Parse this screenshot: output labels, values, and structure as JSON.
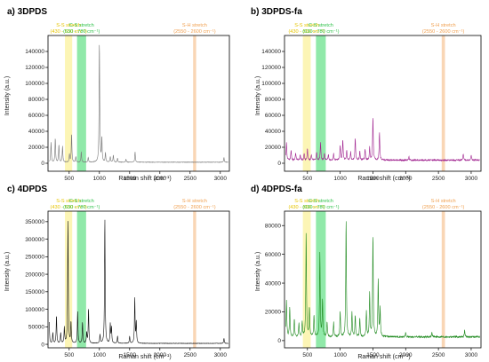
{
  "colors": {
    "ss_band": "#fbf3a8",
    "cs_band": "#7de59a",
    "sh_band": "#f8cfa8",
    "ss_text": "#e6c400",
    "cs_text": "#2ec24a",
    "sh_text": "#f0a050"
  },
  "chart_data": [
    {
      "type": "line",
      "title": "a) 3DPDS",
      "xlabel": "Raman shift (cm⁻¹)",
      "ylabel": "Intensity (a.u.)",
      "xlim": [
        150,
        3150
      ],
      "ylim": [
        -10000,
        160000
      ],
      "xticks": [
        "500",
        "1000",
        "1500",
        "2000",
        "2500",
        "3000"
      ],
      "yticks": [
        "0",
        "20000",
        "40000",
        "60000",
        "80000",
        "100000",
        "120000",
        "140000"
      ],
      "ytick_values": [
        0,
        20000,
        40000,
        60000,
        80000,
        100000,
        120000,
        140000
      ],
      "color": "#7a7a7a",
      "bands": [
        {
          "name": "S-S stretch",
          "range": "(430 - 550 cm⁻¹)",
          "from": 430,
          "to": 550,
          "kind": "ss"
        },
        {
          "name": "C-S stretch",
          "range": "(630 - 780 cm⁻¹)",
          "from": 630,
          "to": 780,
          "kind": "cs"
        },
        {
          "name": "S-H stretch",
          "range": "(2550 - 2600 cm⁻¹)",
          "from": 2550,
          "to": 2600,
          "kind": "sh"
        }
      ],
      "baseline": 1000,
      "peaks": [
        [
          200,
          25000
        ],
        [
          270,
          30000
        ],
        [
          330,
          22000
        ],
        [
          390,
          20000
        ],
        [
          505,
          10000
        ],
        [
          540,
          36000
        ],
        [
          610,
          7000
        ],
        [
          700,
          13000
        ],
        [
          815,
          6000
        ],
        [
          1000,
          152000
        ],
        [
          1040,
          30000
        ],
        [
          1100,
          12000
        ],
        [
          1180,
          7000
        ],
        [
          1230,
          9000
        ],
        [
          1300,
          5000
        ],
        [
          1440,
          4000
        ],
        [
          1590,
          13000
        ],
        [
          3060,
          6000
        ]
      ],
      "grid": false
    },
    {
      "type": "line",
      "title": "b) 3DPDS-fa",
      "xlabel": "Raman shift (cm⁻¹)",
      "ylabel": "Intensity (a.u.)",
      "xlim": [
        150,
        3150
      ],
      "ylim": [
        -10000,
        160000
      ],
      "xticks": [
        "500",
        "1000",
        "1500",
        "2000",
        "2500",
        "3000"
      ],
      "yticks": [
        "0",
        "20000",
        "40000",
        "60000",
        "80000",
        "100000",
        "120000",
        "140000"
      ],
      "ytick_values": [
        0,
        20000,
        40000,
        60000,
        80000,
        100000,
        120000,
        140000
      ],
      "color": "#a0238f",
      "bands": [
        {
          "name": "S-S stretch",
          "range": "(430 - 550 cm⁻¹)",
          "from": 430,
          "to": 550,
          "kind": "ss"
        },
        {
          "name": "C-S stretch",
          "range": "(630 - 780 cm⁻¹)",
          "from": 630,
          "to": 780,
          "kind": "cs"
        },
        {
          "name": "S-H stretch",
          "range": "(2550 - 2600 cm⁻¹)",
          "from": 2550,
          "to": 2600,
          "kind": "sh"
        }
      ],
      "baseline": 3000,
      "peaks": [
        [
          180,
          22000
        ],
        [
          250,
          12000
        ],
        [
          320,
          9000
        ],
        [
          390,
          7000
        ],
        [
          450,
          8000
        ],
        [
          500,
          14000
        ],
        [
          560,
          6000
        ],
        [
          640,
          10000
        ],
        [
          700,
          22000
        ],
        [
          760,
          9000
        ],
        [
          820,
          7000
        ],
        [
          900,
          8000
        ],
        [
          1000,
          18000
        ],
        [
          1040,
          26000
        ],
        [
          1100,
          12000
        ],
        [
          1160,
          10000
        ],
        [
          1230,
          28000
        ],
        [
          1300,
          11000
        ],
        [
          1380,
          14000
        ],
        [
          1450,
          16000
        ],
        [
          1500,
          55000
        ],
        [
          1600,
          35000
        ],
        [
          2050,
          4000
        ],
        [
          2880,
          8000
        ],
        [
          3000,
          6000
        ]
      ],
      "grid": false
    },
    {
      "type": "line",
      "title": "c) 4DPDS",
      "xlabel": "Raman shift (cm⁻¹)",
      "ylabel": "Intensity (a.u.)",
      "xlim": [
        150,
        3150
      ],
      "ylim": [
        -10000,
        380000
      ],
      "xticks": [
        "500",
        "1000",
        "1500",
        "2000",
        "2500",
        "3000"
      ],
      "yticks": [
        "0",
        "50000",
        "100000",
        "150000",
        "200000",
        "250000",
        "300000",
        "350000"
      ],
      "ytick_values": [
        0,
        50000,
        100000,
        150000,
        200000,
        250000,
        300000,
        350000
      ],
      "color": "#111111",
      "bands": [
        {
          "name": "S-S stretch",
          "range": "(430 - 550 cm⁻¹)",
          "from": 430,
          "to": 550,
          "kind": "ss"
        },
        {
          "name": "C-S stretch",
          "range": "(630 - 780 cm⁻¹)",
          "from": 630,
          "to": 780,
          "kind": "cs"
        },
        {
          "name": "S-H stretch",
          "range": "(2550 - 2600 cm⁻¹)",
          "from": 2550,
          "to": 2600,
          "kind": "sh"
        }
      ],
      "baseline": 2000,
      "peaks": [
        [
          170,
          60000
        ],
        [
          230,
          30000
        ],
        [
          290,
          80000
        ],
        [
          360,
          30000
        ],
        [
          420,
          45000
        ],
        [
          480,
          355000
        ],
        [
          530,
          60000
        ],
        [
          640,
          90000
        ],
        [
          720,
          60000
        ],
        [
          790,
          30000
        ],
        [
          820,
          100000
        ],
        [
          1010,
          25000
        ],
        [
          1090,
          360000
        ],
        [
          1180,
          55000
        ],
        [
          1200,
          45000
        ],
        [
          1300,
          20000
        ],
        [
          1500,
          20000
        ],
        [
          1585,
          130000
        ],
        [
          1610,
          60000
        ],
        [
          3060,
          15000
        ]
      ],
      "grid": false
    },
    {
      "type": "line",
      "title": "d) 4DPDS-fa",
      "xlabel": "Raman shift (cm⁻¹)",
      "ylabel": "Intensity (a.u.)",
      "xlim": [
        150,
        3150
      ],
      "ylim": [
        -5000,
        90000
      ],
      "xticks": [
        "500",
        "1000",
        "1500",
        "2000",
        "2500",
        "3000"
      ],
      "yticks": [
        "0",
        "20000",
        "40000",
        "60000",
        "80000"
      ],
      "ytick_values": [
        0,
        20000,
        40000,
        60000,
        80000
      ],
      "color": "#1f8a1f",
      "bands": [
        {
          "name": "S-S stretch",
          "range": "(430 - 550 cm⁻¹)",
          "from": 430,
          "to": 550,
          "kind": "ss"
        },
        {
          "name": "C-S stretch",
          "range": "(630 - 780 cm⁻¹)",
          "from": 630,
          "to": 780,
          "kind": "cs"
        },
        {
          "name": "S-H stretch",
          "range": "(2550 - 2600 cm⁻¹)",
          "from": 2550,
          "to": 2600,
          "kind": "sh"
        }
      ],
      "baseline": 2000,
      "peaks": [
        [
          180,
          25000
        ],
        [
          230,
          20000
        ],
        [
          300,
          12000
        ],
        [
          370,
          9000
        ],
        [
          420,
          10000
        ],
        [
          480,
          73000
        ],
        [
          530,
          20000
        ],
        [
          600,
          15000
        ],
        [
          690,
          58000
        ],
        [
          730,
          25000
        ],
        [
          800,
          10000
        ],
        [
          900,
          10000
        ],
        [
          1000,
          18000
        ],
        [
          1090,
          82000
        ],
        [
          1180,
          17000
        ],
        [
          1230,
          15000
        ],
        [
          1300,
          13000
        ],
        [
          1400,
          18000
        ],
        [
          1450,
          30000
        ],
        [
          1500,
          72000
        ],
        [
          1580,
          40000
        ],
        [
          1610,
          20000
        ],
        [
          2000,
          3000
        ],
        [
          2400,
          3000
        ],
        [
          2900,
          5000
        ]
      ],
      "grid": false
    }
  ]
}
